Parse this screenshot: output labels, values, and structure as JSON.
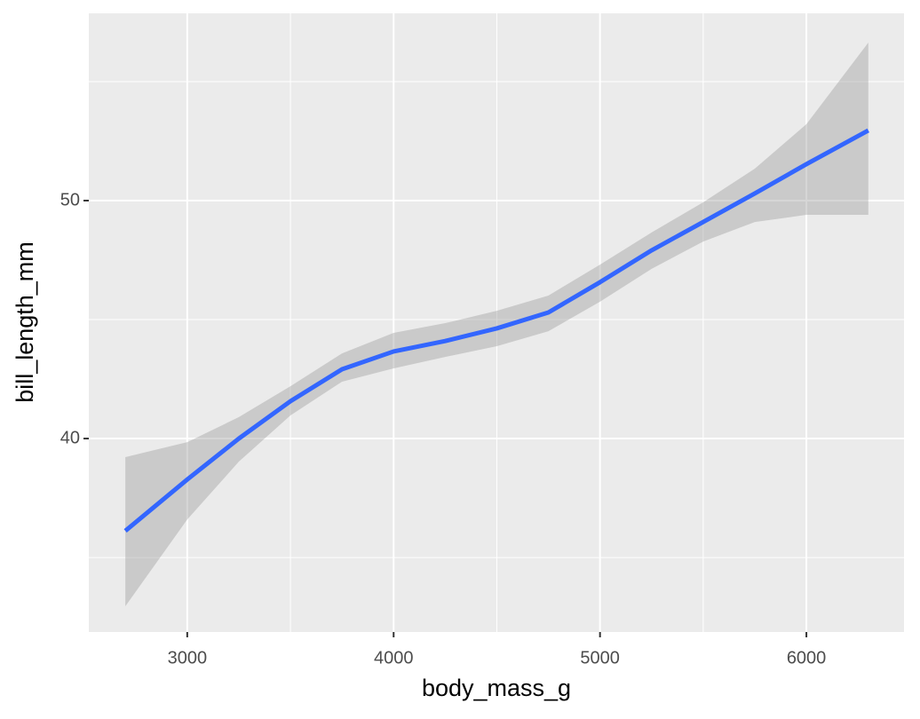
{
  "chart_data": {
    "type": "line",
    "x_label": "body_mass_g",
    "y_label": "bill_length_mm",
    "x": [
      2700,
      3000,
      3250,
      3500,
      3750,
      4000,
      4250,
      4500,
      4750,
      5000,
      5250,
      5500,
      5750,
      6000,
      6300
    ],
    "y": [
      36.12,
      38.28,
      40.0,
      41.57,
      42.91,
      43.66,
      44.1,
      44.63,
      45.3,
      46.57,
      47.91,
      49.1,
      50.3,
      51.53,
      52.95
    ],
    "ymax": [
      39.22,
      39.85,
      40.9,
      42.2,
      43.58,
      44.44,
      44.85,
      45.37,
      46.01,
      47.31,
      48.66,
      49.93,
      51.34,
      53.21,
      56.64
    ],
    "ymin": [
      32.95,
      36.6,
      39.03,
      40.97,
      42.39,
      42.95,
      43.43,
      43.88,
      44.51,
      45.75,
      47.13,
      48.28,
      49.1,
      49.4,
      49.4
    ],
    "color": "#3366ff",
    "band_color": "#999999",
    "xlim": [
      2523,
      6473
    ],
    "ylim": [
      31.87,
      57.87
    ],
    "xticks": [
      3000,
      4000,
      5000,
      6000
    ],
    "yticks": [
      40,
      50
    ],
    "x_minor_ticks": [
      3500,
      4500,
      5500
    ],
    "y_minor_ticks": [
      35,
      45,
      55
    ],
    "grid": true
  }
}
